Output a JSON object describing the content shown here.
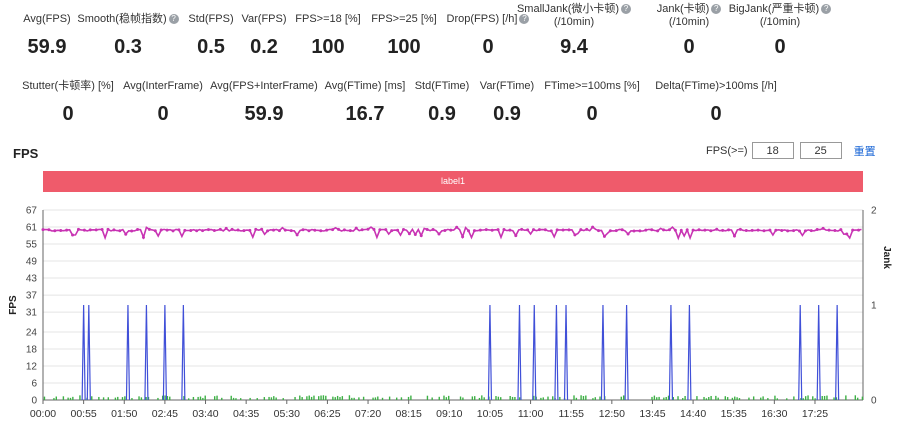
{
  "stats_row1": [
    {
      "label": "Avg(FPS)",
      "value": "59.9",
      "help": false
    },
    {
      "label": "Smooth(稳帧指数)",
      "value": "0.3",
      "help": true
    },
    {
      "label": "Std(FPS)",
      "value": "0.5",
      "help": false
    },
    {
      "label": "Var(FPS)",
      "value": "0.2",
      "help": false
    },
    {
      "label": "FPS>=18 [%]",
      "value": "100",
      "help": false
    },
    {
      "label": "FPS>=25 [%]",
      "value": "100",
      "help": false
    },
    {
      "label": "Drop(FPS) [/h]",
      "value": "0",
      "help": true
    },
    {
      "label": "SmallJank(微小卡顿)",
      "label2": "(/10min)",
      "value": "9.4",
      "help": true
    },
    {
      "label": "Jank(卡顿)",
      "label2": "(/10min)",
      "value": "0",
      "help": true
    },
    {
      "label": "BigJank(严重卡顿)",
      "label2": "(/10min)",
      "value": "0",
      "help": true
    }
  ],
  "stats_row2": [
    {
      "label": "Stutter(卡顿率) [%]",
      "value": "0"
    },
    {
      "label": "Avg(InterFrame)",
      "value": "0"
    },
    {
      "label": "Avg(FPS+InterFrame)",
      "value": "59.9"
    },
    {
      "label": "Avg(FTime) [ms]",
      "value": "16.7"
    },
    {
      "label": "Std(FTime)",
      "value": "0.9"
    },
    {
      "label": "Var(FTime)",
      "value": "0.9"
    },
    {
      "label": "FTime>=100ms [%]",
      "value": "0"
    },
    {
      "label": "Delta(FTime)>100ms [/h]",
      "value": "0"
    }
  ],
  "help_glyph": "?",
  "fps_section": {
    "title": "FPS",
    "filter_label": "FPS(>=)",
    "threshold1": "18",
    "threshold2": "25",
    "reset_label": "重置",
    "label_bar": "label1"
  },
  "colors": {
    "fps_line": "#c833b3",
    "jank_line": "#4050d8",
    "small_jank": "#3cb044",
    "label_bar": "#ef5b6b",
    "link": "#1a66d6"
  },
  "chart_data": {
    "type": "line",
    "ylabel": "FPS",
    "y2label": "Jank",
    "y_ticks": [
      0,
      6,
      12,
      18,
      24,
      31,
      37,
      43,
      49,
      55,
      61,
      67
    ],
    "y2_ticks": [
      0,
      1,
      2
    ],
    "x_ticks": [
      "00:00",
      "00:55",
      "01:50",
      "02:45",
      "03:40",
      "04:35",
      "05:30",
      "06:25",
      "07:20",
      "08:15",
      "09:10",
      "10:05",
      "11:00",
      "11:55",
      "12:50",
      "13:45",
      "14:40",
      "15:35",
      "16:30",
      "17:25"
    ],
    "xlim_seconds": [
      0,
      1110
    ],
    "series": [
      {
        "name": "FPS",
        "axis": "left",
        "value": 59.9,
        "approx_range": [
          57,
          61
        ]
      },
      {
        "name": "Jank",
        "axis": "right",
        "values_at_seconds": [
          [
            55,
            1
          ],
          [
            62,
            1
          ],
          [
            115,
            1
          ],
          [
            140,
            1
          ],
          [
            165,
            1
          ],
          [
            190,
            1
          ],
          [
            605,
            1
          ],
          [
            645,
            1
          ],
          [
            665,
            1
          ],
          [
            695,
            1
          ],
          [
            708,
            1
          ],
          [
            758,
            1
          ],
          [
            790,
            1
          ],
          [
            850,
            1
          ],
          [
            875,
            1
          ],
          [
            1025,
            1
          ],
          [
            1050,
            1
          ],
          [
            1075,
            1
          ]
        ]
      },
      {
        "name": "SmallJank",
        "axis": "right",
        "approx_max": 0.05
      }
    ],
    "grid": true
  }
}
